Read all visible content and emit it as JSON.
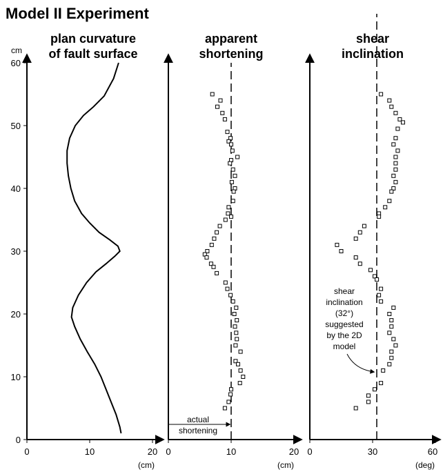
{
  "figure_title": "Model II Experiment",
  "y_unit": "cm",
  "chart_data": [
    {
      "type": "line",
      "title_lines": [
        "plan curvature",
        "of fault surface"
      ],
      "xlim": [
        0,
        20
      ],
      "ylim": [
        0,
        60
      ],
      "x_ticks": [
        "0",
        "10",
        "20"
      ],
      "y_ticks": [
        "0",
        "10",
        "20",
        "30",
        "40",
        "50",
        "60"
      ],
      "x_unit": "(cm)",
      "series": [
        {
          "points": [
            [
              15,
              1
            ],
            [
              14.8,
              2
            ],
            [
              14.2,
              4
            ],
            [
              13.4,
              6
            ],
            [
              12.6,
              8
            ],
            [
              11.8,
              10
            ],
            [
              10.8,
              12
            ],
            [
              9.6,
              14
            ],
            [
              8.5,
              16
            ],
            [
              7.6,
              18
            ],
            [
              7.1,
              19.5
            ],
            [
              7.3,
              21
            ],
            [
              8.2,
              23
            ],
            [
              9.5,
              25
            ],
            [
              11,
              26.7
            ],
            [
              12.6,
              28
            ],
            [
              14,
              29.2
            ],
            [
              14.8,
              30
            ],
            [
              14.5,
              30.8
            ],
            [
              13.2,
              31.8
            ],
            [
              11.5,
              33
            ],
            [
              10,
              34.5
            ],
            [
              8.7,
              36
            ],
            [
              7.6,
              38
            ],
            [
              7,
              40
            ],
            [
              6.6,
              42
            ],
            [
              6.4,
              44
            ],
            [
              6.4,
              46
            ],
            [
              6.8,
              48
            ],
            [
              7.7,
              50
            ],
            [
              9,
              51.6
            ],
            [
              10.6,
              53
            ],
            [
              12.3,
              54.7
            ],
            [
              13.8,
              57.5
            ],
            [
              14.6,
              60
            ]
          ]
        }
      ]
    },
    {
      "type": "scatter",
      "title_lines": [
        "apparent",
        "shortening"
      ],
      "xlim": [
        0,
        20
      ],
      "ylim": [
        0,
        60
      ],
      "x_ticks": [
        "0",
        "10",
        "20"
      ],
      "x_unit": "(cm)",
      "reference_line_x": 10,
      "annotation_lines": [
        "actual",
        "shortening"
      ],
      "series": [
        {
          "points": [
            [
              7,
              55
            ],
            [
              8.3,
              54
            ],
            [
              7.8,
              53
            ],
            [
              8.6,
              52
            ],
            [
              9,
              51
            ],
            [
              9.4,
              49
            ],
            [
              9.9,
              48
            ],
            [
              9.6,
              47.5
            ],
            [
              10,
              47
            ],
            [
              10.2,
              46
            ],
            [
              11,
              45
            ],
            [
              10,
              44.5
            ],
            [
              9.8,
              44
            ],
            [
              10.3,
              43
            ],
            [
              10.6,
              42
            ],
            [
              10.1,
              41
            ],
            [
              10.6,
              40
            ],
            [
              10.4,
              39.5
            ],
            [
              10.3,
              38
            ],
            [
              9.6,
              37
            ],
            [
              9.5,
              36
            ],
            [
              10,
              35.5
            ],
            [
              9.1,
              35
            ],
            [
              8.2,
              34
            ],
            [
              7.7,
              33
            ],
            [
              7.3,
              32
            ],
            [
              6.9,
              31
            ],
            [
              6.2,
              30
            ],
            [
              5.8,
              29.5
            ],
            [
              6.1,
              29
            ],
            [
              6.8,
              28
            ],
            [
              7.2,
              27.5
            ],
            [
              7.7,
              26.5
            ],
            [
              9.1,
              25
            ],
            [
              9.4,
              24
            ],
            [
              9.9,
              23
            ],
            [
              10.3,
              22
            ],
            [
              10.8,
              21
            ],
            [
              10.5,
              20
            ],
            [
              10.9,
              19
            ],
            [
              10.6,
              18
            ],
            [
              10.8,
              17
            ],
            [
              10.9,
              16
            ],
            [
              10.7,
              15
            ],
            [
              11.5,
              14
            ],
            [
              10.7,
              12.5
            ],
            [
              11.1,
              12
            ],
            [
              11.5,
              11
            ],
            [
              11.9,
              10
            ],
            [
              11.4,
              9
            ],
            [
              10,
              8
            ],
            [
              9.9,
              7.2
            ],
            [
              9.6,
              6
            ],
            [
              9,
              5
            ]
          ]
        }
      ]
    },
    {
      "type": "scatter",
      "title_lines": [
        "shear",
        "inclination"
      ],
      "xlim": [
        0,
        60
      ],
      "ylim": [
        0,
        60
      ],
      "x_ticks": [
        "0",
        "30",
        "60"
      ],
      "x_unit": "(deg)",
      "reference_line_x": 32,
      "annotation_lines": [
        "shear",
        "inclination",
        "(32°)",
        "suggested",
        "by the 2D",
        "model"
      ],
      "series": [
        {
          "points": [
            [
              34,
              55
            ],
            [
              38,
              54
            ],
            [
              39,
              53
            ],
            [
              41,
              52
            ],
            [
              43,
              51
            ],
            [
              44.5,
              50.5
            ],
            [
              42,
              49.5
            ],
            [
              41,
              48
            ],
            [
              40,
              47
            ],
            [
              42,
              46
            ],
            [
              41,
              45
            ],
            [
              41,
              44
            ],
            [
              41,
              43
            ],
            [
              40,
              42
            ],
            [
              41,
              41
            ],
            [
              40,
              40
            ],
            [
              39,
              39.5
            ],
            [
              38,
              38
            ],
            [
              36,
              37
            ],
            [
              33,
              36
            ],
            [
              33,
              35.5
            ],
            [
              26,
              34
            ],
            [
              24,
              33
            ],
            [
              22,
              32
            ],
            [
              13,
              31
            ],
            [
              15,
              30
            ],
            [
              22,
              29
            ],
            [
              24,
              28
            ],
            [
              29,
              27
            ],
            [
              31,
              26
            ],
            [
              32,
              25.5
            ],
            [
              34,
              24
            ],
            [
              33,
              23
            ],
            [
              34,
              22
            ],
            [
              40,
              21
            ],
            [
              38,
              20
            ],
            [
              39,
              19
            ],
            [
              39,
              18
            ],
            [
              38,
              17
            ],
            [
              40,
              16
            ],
            [
              41,
              15
            ],
            [
              39,
              14
            ],
            [
              39,
              13
            ],
            [
              38,
              12
            ],
            [
              35,
              11
            ],
            [
              34,
              9
            ],
            [
              31,
              8
            ],
            [
              28,
              7
            ],
            [
              28,
              6
            ],
            [
              22,
              5
            ]
          ]
        }
      ]
    }
  ]
}
